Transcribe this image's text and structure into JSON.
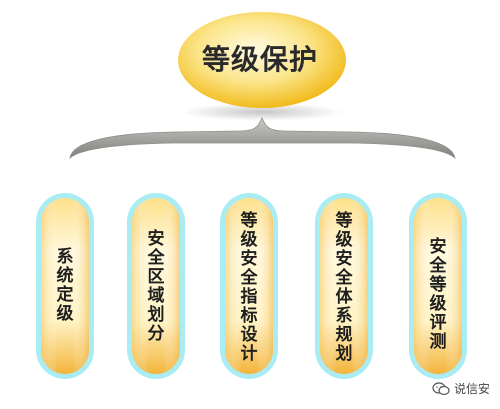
{
  "root": {
    "label": "等级保护"
  },
  "children": [
    {
      "label": "系统定级"
    },
    {
      "label": "安全区域划分"
    },
    {
      "label": "等级安全指标设计"
    },
    {
      "label": "等级安全体系规划"
    },
    {
      "label": "安全等级评测"
    }
  ],
  "watermark": {
    "text": "说信安",
    "icon": "wechat-icon"
  },
  "colors": {
    "pill_fill_light": "#fff6cc",
    "pill_fill_dark": "#f2b52c",
    "pill_border": "#8fe3ee",
    "root_fill_light": "#fff9d6",
    "root_fill_dark": "#f4c21e",
    "bracket": "#9a9c98"
  }
}
